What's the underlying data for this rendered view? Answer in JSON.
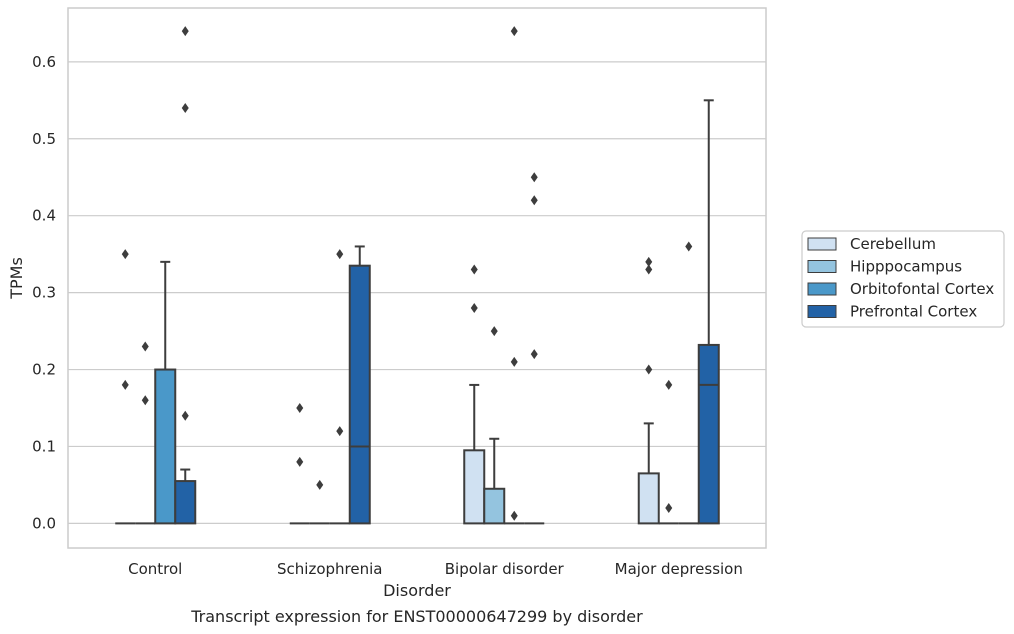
{
  "chart_data": {
    "type": "box",
    "xlabel": "Disorder",
    "ylabel": "TPMs",
    "caption": "Transcript expression for ENST00000647299 by disorder",
    "categories": [
      "Control",
      "Schizophrenia",
      "Bipolar disorder",
      "Major depression"
    ],
    "ylim": [
      -0.032,
      0.67
    ],
    "yticks": [
      0.0,
      0.1,
      0.2,
      0.3,
      0.4,
      0.5,
      0.6
    ],
    "ytick_labels": [
      "0.0",
      "0.1",
      "0.2",
      "0.3",
      "0.4",
      "0.5",
      "0.6"
    ],
    "grid": "horizontal",
    "legend_position": "right",
    "series": [
      {
        "name": "Cerebellum",
        "color": "#d0e1f2",
        "boxes": [
          {
            "q1": 0,
            "median": 0,
            "q3": 0,
            "whisker_low": 0,
            "whisker_high": 0,
            "outliers": [
              0.35,
              0.18
            ]
          },
          {
            "q1": 0,
            "median": 0,
            "q3": 0,
            "whisker_low": 0,
            "whisker_high": 0,
            "outliers": [
              0.15,
              0.08
            ]
          },
          {
            "q1": 0,
            "median": 0,
            "q3": 0.095,
            "whisker_low": 0,
            "whisker_high": 0.18,
            "outliers": [
              0.33,
              0.28
            ]
          },
          {
            "q1": 0,
            "median": 0,
            "q3": 0.065,
            "whisker_low": 0,
            "whisker_high": 0.13,
            "outliers": [
              0.34,
              0.33,
              0.2
            ]
          }
        ]
      },
      {
        "name": "Hipppocampus",
        "color": "#94c4df",
        "boxes": [
          {
            "q1": 0,
            "median": 0,
            "q3": 0,
            "whisker_low": 0,
            "whisker_high": 0,
            "outliers": [
              0.23,
              0.16
            ]
          },
          {
            "q1": 0,
            "median": 0,
            "q3": 0,
            "whisker_low": 0,
            "whisker_high": 0,
            "outliers": [
              0.05
            ]
          },
          {
            "q1": 0,
            "median": 0,
            "q3": 0.045,
            "whisker_low": 0,
            "whisker_high": 0.11,
            "outliers": [
              0.25
            ]
          },
          {
            "q1": 0,
            "median": 0,
            "q3": 0,
            "whisker_low": 0,
            "whisker_high": 0,
            "outliers": [
              0.18,
              0.02
            ]
          }
        ]
      },
      {
        "name": "Orbitofontal Cortex",
        "color": "#4a98c9",
        "boxes": [
          {
            "q1": 0,
            "median": 0,
            "q3": 0.2,
            "whisker_low": 0,
            "whisker_high": 0.34,
            "outliers": []
          },
          {
            "q1": 0,
            "median": 0,
            "q3": 0,
            "whisker_low": 0,
            "whisker_high": 0,
            "outliers": [
              0.35,
              0.12
            ]
          },
          {
            "q1": 0,
            "median": 0,
            "q3": 0,
            "whisker_low": 0,
            "whisker_high": 0,
            "outliers": [
              0.64,
              0.21,
              0.01
            ]
          },
          {
            "q1": 0,
            "median": 0,
            "q3": 0,
            "whisker_low": 0,
            "whisker_high": 0,
            "outliers": [
              0.36
            ]
          }
        ]
      },
      {
        "name": "Prefrontal Cortex",
        "color": "#2262a6",
        "boxes": [
          {
            "q1": 0,
            "median": 0,
            "q3": 0.055,
            "whisker_low": 0,
            "whisker_high": 0.07,
            "outliers": [
              0.64,
              0.54,
              0.14
            ]
          },
          {
            "q1": 0,
            "median": 0.1,
            "q3": 0.335,
            "whisker_low": 0,
            "whisker_high": 0.36,
            "outliers": []
          },
          {
            "q1": 0,
            "median": 0,
            "q3": 0,
            "whisker_low": 0,
            "whisker_high": 0,
            "outliers": [
              0.45,
              0.42,
              0.22
            ]
          },
          {
            "q1": 0,
            "median": 0.18,
            "q3": 0.232,
            "whisker_low": 0,
            "whisker_high": 0.55,
            "outliers": []
          }
        ]
      }
    ]
  }
}
